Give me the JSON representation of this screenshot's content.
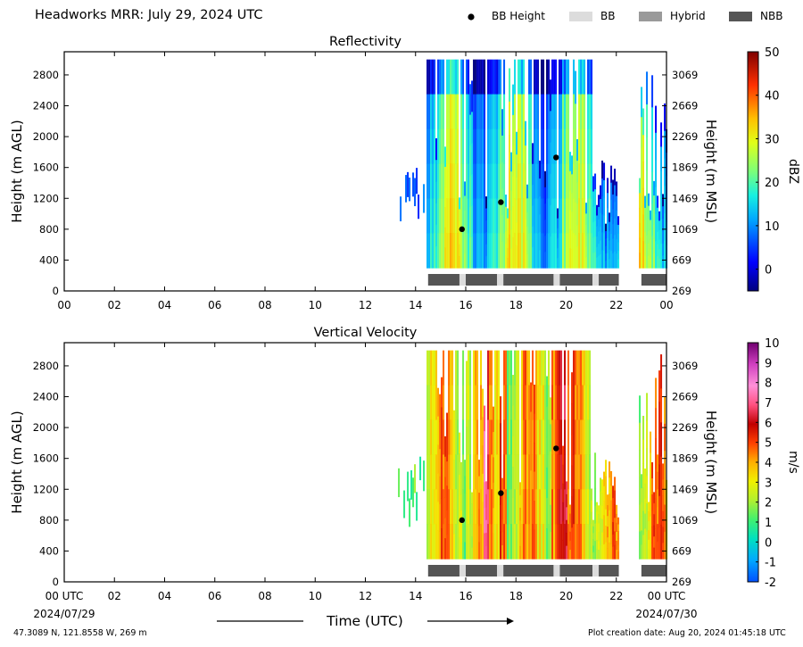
{
  "header": {
    "title": "Headworks MRR:  July 29, 2024 UTC"
  },
  "legend": {
    "items": [
      {
        "label": "BB Height",
        "kind": "marker",
        "color": "#000000"
      },
      {
        "label": "BB",
        "kind": "swatch",
        "color": "#dcdcdc"
      },
      {
        "label": "Hybrid",
        "kind": "swatch",
        "color": "#9a9a9a"
      },
      {
        "label": "NBB",
        "kind": "swatch",
        "color": "#555555"
      }
    ]
  },
  "chart_data": [
    {
      "type": "heatmap",
      "title": "Reflectivity",
      "xlabel": "",
      "ylabel": "Height (m AGL)",
      "ylabel_right": "Height (m MSL)",
      "colorbar_label": "dBZ",
      "x_ticks": [
        "00",
        "02",
        "04",
        "06",
        "08",
        "10",
        "12",
        "14",
        "16",
        "18",
        "20",
        "22",
        "00"
      ],
      "y_ticks": [
        "0",
        "400",
        "800",
        "1200",
        "1600",
        "2000",
        "2400",
        "2800"
      ],
      "y_ticks_right": [
        "269",
        "669",
        "1069",
        "1469",
        "1869",
        "2269",
        "2669",
        "3069"
      ],
      "colorbar_ticks": [
        "0",
        "10",
        "20",
        "30",
        "40",
        "50"
      ],
      "colorbar_range": [
        -5,
        50
      ],
      "ylim": [
        0,
        3100
      ],
      "xlim_hours": [
        0,
        24
      ],
      "data_extent": {
        "start_hour": 13.3,
        "gap_hours": [
          22.1,
          22.9
        ],
        "top_m": 3000,
        "bottom_m": 300
      },
      "bb_height": [
        {
          "hour": 15.85,
          "height_m": 800
        },
        {
          "hour": 17.4,
          "height_m": 1150
        },
        {
          "hour": 19.6,
          "height_m": 1730
        }
      ],
      "bb_type_bar": [
        {
          "start": 14.5,
          "end": 15.75,
          "type": "NBB"
        },
        {
          "start": 15.75,
          "end": 16.0,
          "type": "BB"
        },
        {
          "start": 16.0,
          "end": 17.25,
          "type": "NBB"
        },
        {
          "start": 17.25,
          "end": 17.5,
          "type": "BB"
        },
        {
          "start": 17.5,
          "end": 19.5,
          "type": "NBB"
        },
        {
          "start": 19.5,
          "end": 19.75,
          "type": "BB"
        },
        {
          "start": 19.75,
          "end": 21.05,
          "type": "NBB"
        },
        {
          "start": 21.05,
          "end": 21.3,
          "type": "BB"
        },
        {
          "start": 21.3,
          "end": 22.1,
          "type": "NBB"
        },
        {
          "start": 23.0,
          "end": 24.0,
          "type": "NBB"
        }
      ]
    },
    {
      "type": "heatmap",
      "title": "Vertical Velocity",
      "xlabel": "Time (UTC)",
      "ylabel": "Height (m AGL)",
      "ylabel_right": "Height (m MSL)",
      "colorbar_label": "m/s",
      "x_ticks": [
        "00 UTC",
        "02",
        "04",
        "06",
        "08",
        "10",
        "12",
        "14",
        "16",
        "18",
        "20",
        "22",
        "00 UTC"
      ],
      "x_date_left": "2024/07/29",
      "x_date_right": "2024/07/30",
      "y_ticks": [
        "0",
        "400",
        "800",
        "1200",
        "1600",
        "2000",
        "2400",
        "2800"
      ],
      "y_ticks_right": [
        "269",
        "669",
        "1069",
        "1469",
        "1869",
        "2269",
        "2669",
        "3069"
      ],
      "colorbar_ticks": [
        "-2",
        "-1",
        "0",
        "1",
        "2",
        "3",
        "4",
        "5",
        "6",
        "7",
        "8",
        "9",
        "10"
      ],
      "colorbar_range": [
        -2,
        10
      ],
      "ylim": [
        0,
        3100
      ],
      "xlim_hours": [
        0,
        24
      ],
      "data_extent": {
        "start_hour": 13.3,
        "gap_hours": [
          22.1,
          22.9
        ],
        "top_m": 3000,
        "bottom_m": 300
      },
      "bb_height": [
        {
          "hour": 15.85,
          "height_m": 800
        },
        {
          "hour": 17.4,
          "height_m": 1150
        },
        {
          "hour": 19.6,
          "height_m": 1730
        }
      ],
      "bb_type_bar": [
        {
          "start": 14.5,
          "end": 15.75,
          "type": "NBB"
        },
        {
          "start": 15.75,
          "end": 16.0,
          "type": "BB"
        },
        {
          "start": 16.0,
          "end": 17.25,
          "type": "NBB"
        },
        {
          "start": 17.25,
          "end": 17.5,
          "type": "BB"
        },
        {
          "start": 17.5,
          "end": 19.5,
          "type": "NBB"
        },
        {
          "start": 19.5,
          "end": 19.75,
          "type": "BB"
        },
        {
          "start": 19.75,
          "end": 21.05,
          "type": "NBB"
        },
        {
          "start": 21.05,
          "end": 21.3,
          "type": "BB"
        },
        {
          "start": 21.3,
          "end": 22.1,
          "type": "NBB"
        },
        {
          "start": 23.0,
          "end": 24.0,
          "type": "NBB"
        }
      ]
    }
  ],
  "footer": {
    "location": "47.3089 N, 121.8558 W, 269 m",
    "creation": "Plot creation date: Aug 20, 2024 01:45:18 UTC"
  }
}
